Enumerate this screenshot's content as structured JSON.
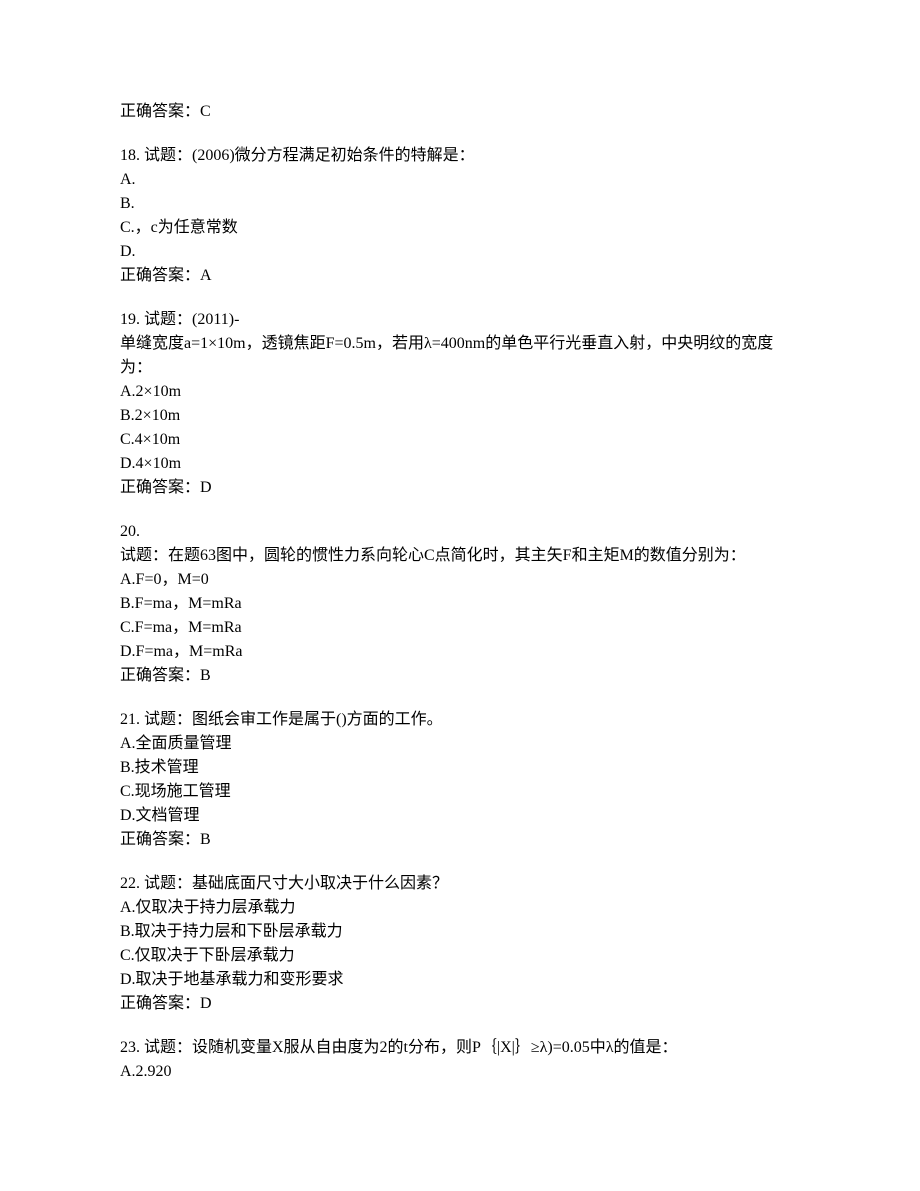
{
  "orphan_answer": "正确答案：C",
  "questions": [
    {
      "number": "18",
      "prompt": "试题：(2006)微分方程满足初始条件的特解是：",
      "options": [
        "A.",
        "B.",
        "C.，c为任意常数",
        "D."
      ],
      "answer": "正确答案：A"
    },
    {
      "number": "19",
      "prompt_lines": [
        "试题：(2011)-",
        "单缝宽度a=1×10m，透镜焦距F=0.5m，若用λ=400nm的单色平行光垂直入射，中央明纹的宽度为："
      ],
      "options": [
        "A.2×10m",
        "B.2×10m",
        "C.4×10m",
        "D.4×10m"
      ],
      "answer": "正确答案：D"
    },
    {
      "number": "20",
      "prompt_lines": [
        "试题：在题63图中，圆轮的惯性力系向轮心C点简化时，其主矢F和主矩M的数值分别为："
      ],
      "options": [
        "A.F=0，M=0",
        "B.F=ma，M=mRa",
        "C.F=ma，M=mRa",
        "D.F=ma，M=mRa"
      ],
      "answer": "正确答案：B"
    },
    {
      "number": "21",
      "prompt": "试题：图纸会审工作是属于()方面的工作。",
      "options": [
        "A.全面质量管理",
        "B.技术管理",
        "C.现场施工管理",
        "D.文档管理"
      ],
      "answer": "正确答案：B"
    },
    {
      "number": "22",
      "prompt": "试题：基础底面尺寸大小取决于什么因素？",
      "options": [
        "A.仅取决于持力层承载力",
        "B.取决于持力层和下卧层承载力",
        "C.仅取决于下卧层承载力",
        "D.取决于地基承载力和变形要求"
      ],
      "answer": "正确答案：D"
    },
    {
      "number": "23",
      "prompt": "试题：设随机变量X服从自由度为2的t分布，则P｛|X|｝≥λ)=0.05中λ的值是：",
      "options": [
        "A.2.920"
      ],
      "answer": null,
      "truncated": true
    }
  ]
}
